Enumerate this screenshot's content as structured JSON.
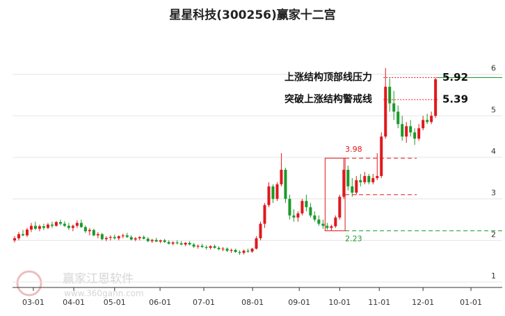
{
  "chart_data": {
    "type": "candlestick",
    "title": "星星科技(300256)赢家十二宫",
    "up_color": "#e0181b",
    "down_color": "#1a9a2a",
    "xlim": [
      -0.5,
      117
    ],
    "ylim": [
      1,
      6.8
    ],
    "grid": true,
    "yticks": [
      1,
      2,
      3,
      4,
      5,
      6
    ],
    "xticks": [
      {
        "value": 4.5,
        "label": "03-01"
      },
      {
        "value": 14.2,
        "label": "04-01"
      },
      {
        "value": 24,
        "label": "05-01"
      },
      {
        "value": 34.9,
        "label": "06-01"
      },
      {
        "value": 45.4,
        "label": "07-01"
      },
      {
        "value": 57.1,
        "label": "08-01"
      },
      {
        "value": 68.3,
        "label": "09-01"
      },
      {
        "value": 78,
        "label": "10-01"
      },
      {
        "value": 87.5,
        "label": "11-01"
      },
      {
        "value": 98,
        "label": "12-01"
      },
      {
        "value": 109.5,
        "label": "01-01"
      }
    ],
    "candles": [
      [
        2.0,
        2.1,
        1.95,
        2.05
      ],
      [
        2.05,
        2.2,
        2.0,
        2.15
      ],
      [
        2.15,
        2.25,
        2.1,
        2.12
      ],
      [
        2.12,
        2.3,
        2.08,
        2.26
      ],
      [
        2.26,
        2.42,
        2.2,
        2.35
      ],
      [
        2.35,
        2.45,
        2.25,
        2.28
      ],
      [
        2.28,
        2.38,
        2.22,
        2.34
      ],
      [
        2.34,
        2.4,
        2.25,
        2.3
      ],
      [
        2.3,
        2.42,
        2.27,
        2.38
      ],
      [
        2.38,
        2.45,
        2.3,
        2.35
      ],
      [
        2.35,
        2.47,
        2.33,
        2.44
      ],
      [
        2.44,
        2.5,
        2.36,
        2.4
      ],
      [
        2.4,
        2.46,
        2.32,
        2.35
      ],
      [
        2.35,
        2.42,
        2.25,
        2.3
      ],
      [
        2.3,
        2.38,
        2.22,
        2.35
      ],
      [
        2.35,
        2.48,
        2.3,
        2.42
      ],
      [
        2.42,
        2.5,
        2.3,
        2.32
      ],
      [
        2.32,
        2.36,
        2.18,
        2.22
      ],
      [
        2.22,
        2.3,
        2.12,
        2.25
      ],
      [
        2.25,
        2.28,
        2.1,
        2.12
      ],
      [
        2.12,
        2.2,
        2.05,
        2.15
      ],
      [
        2.15,
        2.18,
        2.0,
        2.03
      ],
      [
        2.03,
        2.1,
        1.98,
        2.06
      ],
      [
        2.06,
        2.12,
        2.0,
        2.08
      ],
      [
        2.08,
        2.14,
        2.02,
        2.05
      ],
      [
        2.05,
        2.12,
        2.0,
        2.1
      ],
      [
        2.1,
        2.16,
        2.05,
        2.12
      ],
      [
        2.12,
        2.18,
        2.06,
        2.08
      ],
      [
        2.08,
        2.12,
        2.0,
        2.02
      ],
      [
        2.02,
        2.08,
        1.98,
        2.05
      ],
      [
        2.05,
        2.1,
        2.0,
        2.08
      ],
      [
        2.08,
        2.12,
        2.02,
        2.04
      ],
      [
        2.04,
        2.08,
        1.96,
        1.98
      ],
      [
        1.98,
        2.04,
        1.94,
        2.01
      ],
      [
        2.01,
        2.06,
        1.96,
        1.97
      ],
      [
        1.97,
        2.02,
        1.93,
        2.0
      ],
      [
        2.0,
        2.04,
        1.94,
        1.96
      ],
      [
        1.96,
        2.0,
        1.9,
        1.92
      ],
      [
        1.92,
        1.98,
        1.88,
        1.95
      ],
      [
        1.95,
        2.0,
        1.9,
        1.93
      ],
      [
        1.93,
        1.98,
        1.88,
        1.9
      ],
      [
        1.9,
        1.96,
        1.86,
        1.94
      ],
      [
        1.94,
        1.98,
        1.88,
        1.9
      ],
      [
        1.9,
        1.94,
        1.82,
        1.85
      ],
      [
        1.85,
        1.9,
        1.8,
        1.87
      ],
      [
        1.87,
        1.92,
        1.82,
        1.84
      ],
      [
        1.84,
        1.88,
        1.78,
        1.82
      ],
      [
        1.82,
        1.88,
        1.78,
        1.86
      ],
      [
        1.86,
        1.9,
        1.8,
        1.82
      ],
      [
        1.82,
        1.86,
        1.76,
        1.79
      ],
      [
        1.79,
        1.84,
        1.74,
        1.8
      ],
      [
        1.8,
        1.83,
        1.72,
        1.75
      ],
      [
        1.75,
        1.8,
        1.7,
        1.77
      ],
      [
        1.77,
        1.8,
        1.7,
        1.72
      ],
      [
        1.72,
        1.76,
        1.65,
        1.7
      ],
      [
        1.7,
        1.78,
        1.66,
        1.75
      ],
      [
        1.75,
        1.8,
        1.7,
        1.73
      ],
      [
        1.73,
        1.82,
        1.7,
        1.8
      ],
      [
        1.8,
        2.1,
        1.78,
        2.05
      ],
      [
        2.05,
        2.45,
        2.0,
        2.4
      ],
      [
        2.4,
        2.9,
        2.3,
        2.85
      ],
      [
        2.85,
        3.4,
        2.8,
        3.3
      ],
      [
        3.3,
        3.35,
        2.9,
        3.0
      ],
      [
        3.0,
        3.4,
        2.95,
        3.35
      ],
      [
        3.35,
        4.1,
        3.3,
        3.7
      ],
      [
        3.7,
        3.75,
        2.9,
        3.0
      ],
      [
        3.0,
        3.1,
        2.5,
        2.6
      ],
      [
        2.6,
        2.75,
        2.45,
        2.55
      ],
      [
        2.55,
        2.7,
        2.45,
        2.65
      ],
      [
        2.65,
        3.0,
        2.6,
        2.95
      ],
      [
        2.95,
        3.1,
        2.7,
        2.8
      ],
      [
        2.8,
        2.9,
        2.55,
        2.6
      ],
      [
        2.6,
        2.7,
        2.45,
        2.5
      ],
      [
        2.5,
        2.6,
        2.35,
        2.4
      ],
      [
        2.4,
        2.5,
        2.28,
        2.35
      ],
      [
        2.35,
        2.42,
        2.25,
        2.3
      ],
      [
        2.3,
        2.38,
        2.23,
        2.34
      ],
      [
        2.34,
        2.6,
        2.3,
        2.55
      ],
      [
        2.55,
        3.1,
        2.5,
        3.05
      ],
      [
        3.05,
        3.98,
        3.0,
        3.7
      ],
      [
        3.7,
        3.8,
        3.2,
        3.3
      ],
      [
        3.3,
        3.5,
        3.05,
        3.15
      ],
      [
        3.15,
        3.55,
        3.1,
        3.45
      ],
      [
        3.45,
        3.6,
        3.3,
        3.4
      ],
      [
        3.4,
        3.65,
        3.35,
        3.55
      ],
      [
        3.55,
        3.6,
        3.35,
        3.4
      ],
      [
        3.4,
        3.6,
        3.35,
        3.5
      ],
      [
        3.5,
        4.1,
        3.45,
        3.55
      ],
      [
        3.55,
        4.6,
        3.5,
        4.5
      ],
      [
        4.5,
        6.15,
        4.45,
        5.7
      ],
      [
        5.7,
        5.9,
        5.1,
        5.3
      ],
      [
        5.3,
        5.6,
        4.9,
        5.1
      ],
      [
        5.1,
        5.25,
        4.7,
        4.8
      ],
      [
        4.8,
        5.0,
        4.4,
        4.5
      ],
      [
        4.5,
        4.85,
        4.35,
        4.75
      ],
      [
        4.75,
        4.9,
        4.5,
        4.6
      ],
      [
        4.6,
        4.7,
        4.3,
        4.45
      ],
      [
        4.45,
        4.8,
        4.4,
        4.7
      ],
      [
        4.7,
        5.0,
        4.65,
        4.9
      ],
      [
        4.9,
        5.05,
        4.8,
        4.85
      ],
      [
        4.85,
        5.1,
        4.8,
        5.0
      ],
      [
        5.0,
        5.92,
        4.95,
        5.88
      ]
    ],
    "annotations": [
      {
        "text": "上涨结构顶部线压力",
        "value": 5.92
      },
      {
        "text": "突破上涨结构警戒线",
        "value": 5.39
      }
    ],
    "box": {
      "top": 3.98,
      "middle": 3.1,
      "bottom": 2.23
    },
    "watermark": {
      "name": "赢家江恩软件",
      "url": "www.360gann.com"
    }
  }
}
